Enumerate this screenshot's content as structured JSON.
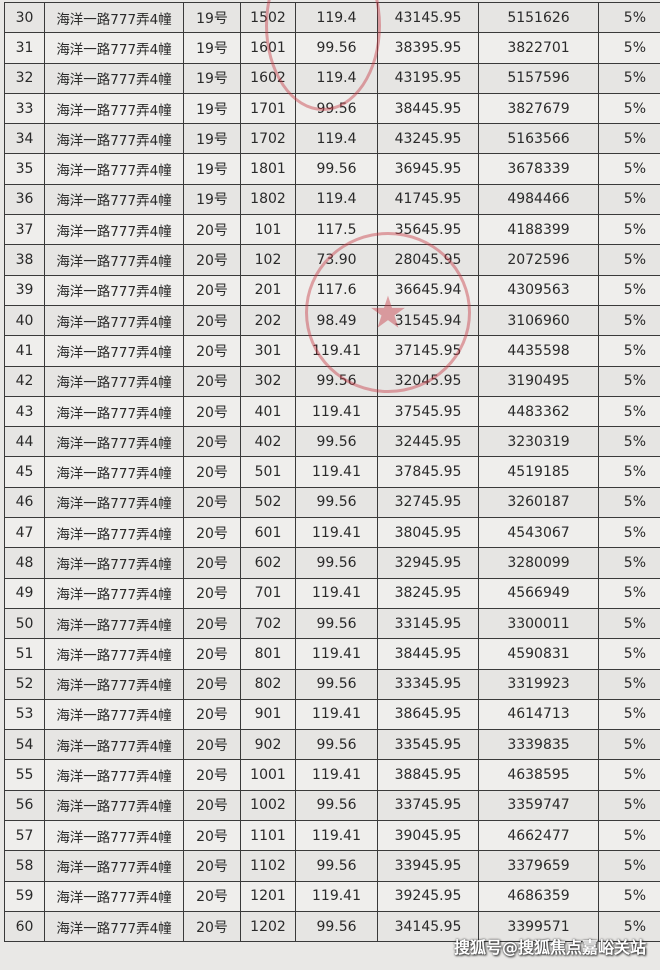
{
  "table": {
    "rows": [
      [
        "30",
        "海洋一路777弄4幢",
        "19号",
        "1502",
        "119.4",
        "43145.95",
        "5151626",
        "5%"
      ],
      [
        "31",
        "海洋一路777弄4幢",
        "19号",
        "1601",
        "99.56",
        "38395.95",
        "3822701",
        "5%"
      ],
      [
        "32",
        "海洋一路777弄4幢",
        "19号",
        "1602",
        "119.4",
        "43195.95",
        "5157596",
        "5%"
      ],
      [
        "33",
        "海洋一路777弄4幢",
        "19号",
        "1701",
        "99.56",
        "38445.95",
        "3827679",
        "5%"
      ],
      [
        "34",
        "海洋一路777弄4幢",
        "19号",
        "1702",
        "119.4",
        "43245.95",
        "5163566",
        "5%"
      ],
      [
        "35",
        "海洋一路777弄4幢",
        "19号",
        "1801",
        "99.56",
        "36945.95",
        "3678339",
        "5%"
      ],
      [
        "36",
        "海洋一路777弄4幢",
        "19号",
        "1802",
        "119.4",
        "41745.95",
        "4984466",
        "5%"
      ],
      [
        "37",
        "海洋一路777弄4幢",
        "20号",
        "101",
        "117.5",
        "35645.95",
        "4188399",
        "5%"
      ],
      [
        "38",
        "海洋一路777弄4幢",
        "20号",
        "102",
        "73.90",
        "28045.95",
        "2072596",
        "5%"
      ],
      [
        "39",
        "海洋一路777弄4幢",
        "20号",
        "201",
        "117.6",
        "36645.94",
        "4309563",
        "5%"
      ],
      [
        "40",
        "海洋一路777弄4幢",
        "20号",
        "202",
        "98.49",
        "31545.94",
        "3106960",
        "5%"
      ],
      [
        "41",
        "海洋一路777弄4幢",
        "20号",
        "301",
        "119.41",
        "37145.95",
        "4435598",
        "5%"
      ],
      [
        "42",
        "海洋一路777弄4幢",
        "20号",
        "302",
        "99.56",
        "32045.95",
        "3190495",
        "5%"
      ],
      [
        "43",
        "海洋一路777弄4幢",
        "20号",
        "401",
        "119.41",
        "37545.95",
        "4483362",
        "5%"
      ],
      [
        "44",
        "海洋一路777弄4幢",
        "20号",
        "402",
        "99.56",
        "32445.95",
        "3230319",
        "5%"
      ],
      [
        "45",
        "海洋一路777弄4幢",
        "20号",
        "501",
        "119.41",
        "37845.95",
        "4519185",
        "5%"
      ],
      [
        "46",
        "海洋一路777弄4幢",
        "20号",
        "502",
        "99.56",
        "32745.95",
        "3260187",
        "5%"
      ],
      [
        "47",
        "海洋一路777弄4幢",
        "20号",
        "601",
        "119.41",
        "38045.95",
        "4543067",
        "5%"
      ],
      [
        "48",
        "海洋一路777弄4幢",
        "20号",
        "602",
        "99.56",
        "32945.95",
        "3280099",
        "5%"
      ],
      [
        "49",
        "海洋一路777弄4幢",
        "20号",
        "701",
        "119.41",
        "38245.95",
        "4566949",
        "5%"
      ],
      [
        "50",
        "海洋一路777弄4幢",
        "20号",
        "702",
        "99.56",
        "33145.95",
        "3300011",
        "5%"
      ],
      [
        "51",
        "海洋一路777弄4幢",
        "20号",
        "801",
        "119.41",
        "38445.95",
        "4590831",
        "5%"
      ],
      [
        "52",
        "海洋一路777弄4幢",
        "20号",
        "802",
        "99.56",
        "33345.95",
        "3319923",
        "5%"
      ],
      [
        "53",
        "海洋一路777弄4幢",
        "20号",
        "901",
        "119.41",
        "38645.95",
        "4614713",
        "5%"
      ],
      [
        "54",
        "海洋一路777弄4幢",
        "20号",
        "902",
        "99.56",
        "33545.95",
        "3339835",
        "5%"
      ],
      [
        "55",
        "海洋一路777弄4幢",
        "20号",
        "1001",
        "119.41",
        "38845.95",
        "4638595",
        "5%"
      ],
      [
        "56",
        "海洋一路777弄4幢",
        "20号",
        "1002",
        "99.56",
        "33745.95",
        "3359747",
        "5%"
      ],
      [
        "57",
        "海洋一路777弄4幢",
        "20号",
        "1101",
        "119.41",
        "39045.95",
        "4662477",
        "5%"
      ],
      [
        "58",
        "海洋一路777弄4幢",
        "20号",
        "1102",
        "99.56",
        "33945.95",
        "3379659",
        "5%"
      ],
      [
        "59",
        "海洋一路777弄4幢",
        "20号",
        "1201",
        "119.41",
        "39245.95",
        "4686359",
        "5%"
      ],
      [
        "60",
        "海洋一路777弄4幢",
        "20号",
        "1202",
        "99.56",
        "34145.95",
        "3399571",
        "5%"
      ]
    ]
  },
  "watermark": "搜狐号@搜狐焦点嘉峪关站",
  "colors": {
    "stamp": "#c83c46"
  }
}
